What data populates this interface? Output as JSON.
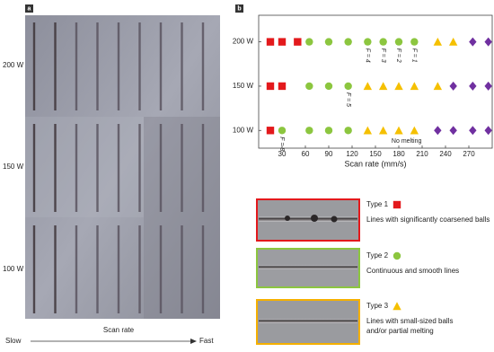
{
  "panel_a": {
    "label": "a",
    "rows": [
      "200 W",
      "150 W",
      "100 W"
    ],
    "axis_label": "Scan rate",
    "slow": "Slow",
    "fast": "Fast"
  },
  "panel_b": {
    "label": "b"
  },
  "chart_data": {
    "type": "scatter",
    "x_label": "Scan rate (mm/s)",
    "xlim": [
      0,
      300
    ],
    "xticks": [
      30,
      60,
      90,
      120,
      150,
      180,
      210,
      240,
      270
    ],
    "ylim": [
      80,
      230
    ],
    "yticks": [
      {
        "value": 100,
        "label": "100 W"
      },
      {
        "value": 150,
        "label": "150 W"
      },
      {
        "value": 200,
        "label": "200 W"
      }
    ],
    "series": [
      {
        "name": "Type 1",
        "color": "#e3191c",
        "marker": "square",
        "description": [
          "Lines with significantly coarsened balls"
        ],
        "x": [
          15,
          30,
          50,
          15,
          30,
          15
        ],
        "values": [
          200,
          200,
          200,
          150,
          150,
          100
        ]
      },
      {
        "name": "Type 2",
        "color": "#8cc63f",
        "marker": "circle",
        "description": [
          "Continuous and smooth lines"
        ],
        "x": [
          65,
          90,
          115,
          140,
          160,
          180,
          200,
          65,
          90,
          115,
          30,
          65,
          90,
          115
        ],
        "values": [
          200,
          200,
          200,
          200,
          200,
          200,
          200,
          150,
          150,
          150,
          100,
          100,
          100,
          100
        ]
      },
      {
        "name": "Type 3",
        "color": "#f5c000",
        "marker": "triangle",
        "description": [
          "Lines with small-sized balls",
          "and/or partial melting"
        ],
        "x": [
          230,
          250,
          140,
          160,
          180,
          200,
          230,
          140,
          160,
          180,
          200
        ],
        "values": [
          200,
          200,
          150,
          150,
          150,
          150,
          150,
          100,
          100,
          100,
          100
        ]
      },
      {
        "color": "#7030a0",
        "marker": "diamond",
        "x": [
          275,
          295,
          250,
          275,
          295,
          230,
          250,
          275,
          295
        ],
        "values": [
          200,
          200,
          150,
          150,
          150,
          100,
          100,
          100,
          100
        ]
      }
    ],
    "annotations": [
      {
        "text": "F = 4",
        "x": 140,
        "y": 200
      },
      {
        "text": "F = 3",
        "x": 160,
        "y": 200
      },
      {
        "text": "F = 2",
        "x": 180,
        "y": 200
      },
      {
        "text": "F = 1",
        "x": 200,
        "y": 200
      },
      {
        "text": "F = 5",
        "x": 115,
        "y": 150
      },
      {
        "text": "F = 8",
        "x": 30,
        "y": 100
      },
      {
        "text": "No melting",
        "x": 190,
        "y": 88
      }
    ]
  }
}
